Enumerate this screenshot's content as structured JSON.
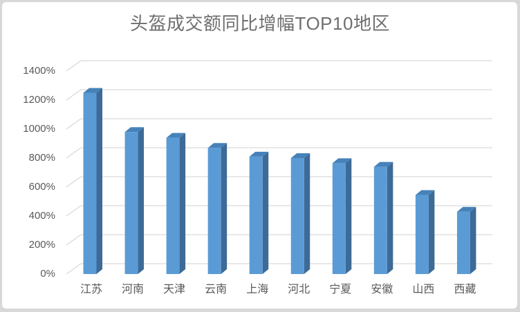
{
  "window": {
    "frame_color": "#d8d8d8",
    "background": "#ffffff"
  },
  "chart_data": {
    "type": "bar",
    "style": "3d-perspective",
    "title": "头盔成交额同比增幅TOP10地区",
    "categories": [
      "江苏",
      "河南",
      "天津",
      "云南",
      "上海",
      "河北",
      "宁夏",
      "安徽",
      "山西",
      "西藏"
    ],
    "values": [
      1250,
      980,
      940,
      870,
      810,
      800,
      765,
      740,
      545,
      430
    ],
    "unit": "%",
    "y_ticks": [
      "0%",
      "200%",
      "400%",
      "600%",
      "800%",
      "1000%",
      "1200%",
      "1400%"
    ],
    "ylim": [
      0,
      1400
    ],
    "y_step": 200,
    "xlabel": "",
    "ylabel": "",
    "grid": true,
    "legend": false,
    "colors": {
      "bar_front": "#5B9BD5",
      "bar_top": "#4682B9",
      "bar_side": "#3D6A97",
      "gridline": "#D9D9D9",
      "axis_text": "#595959",
      "title_text": "#6E6E6E"
    }
  }
}
